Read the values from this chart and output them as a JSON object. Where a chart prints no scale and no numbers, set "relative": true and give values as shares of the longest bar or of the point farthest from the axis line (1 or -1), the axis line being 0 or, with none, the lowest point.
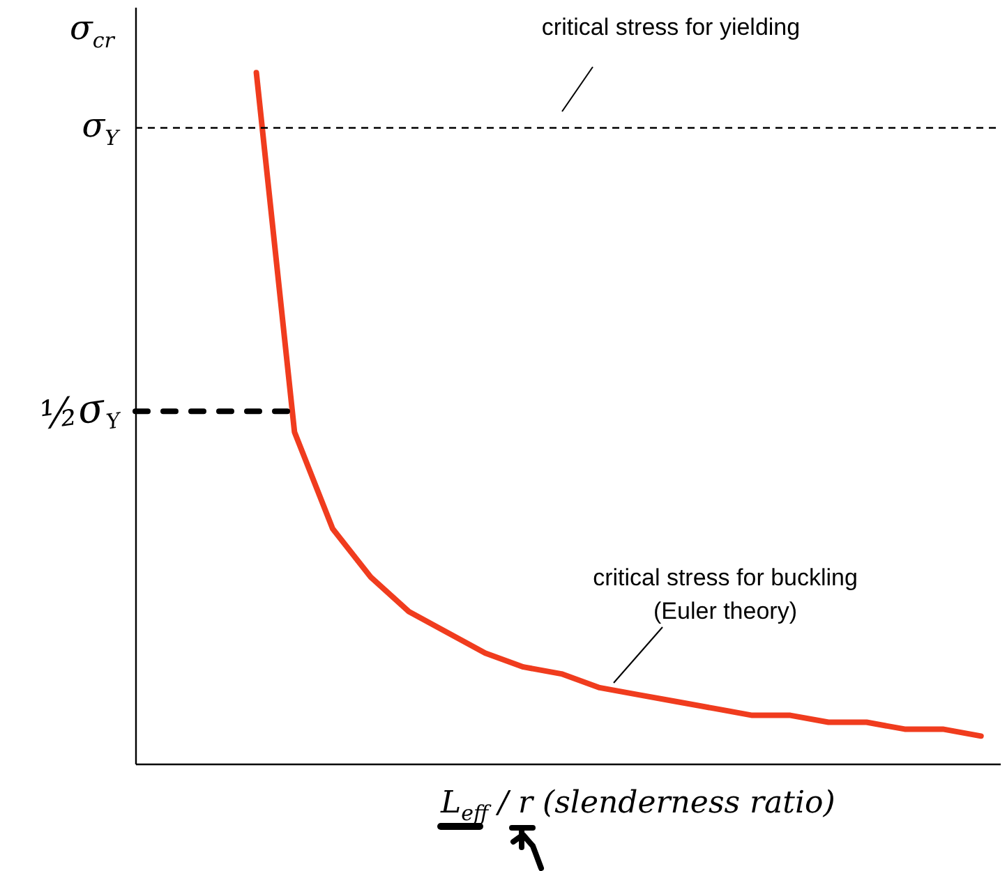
{
  "chart_data": {
    "type": "line",
    "relative": true,
    "xlabel": "L$_{eff}$ / r  (slenderness ratio)",
    "ylabel": "σ$_{cr}$",
    "tick_labels": false,
    "categories": [
      null,
      null,
      null,
      null,
      null,
      null,
      null,
      null,
      null,
      null,
      null,
      null,
      null,
      null,
      null,
      null,
      null,
      null,
      null,
      null
    ],
    "series": [
      {
        "color": "#f03c1e",
        "values": [
          1,
          0.48,
          0.34,
          0.27,
          0.22,
          0.19,
          0.16,
          0.14,
          0.13,
          0.11,
          0.1,
          0.09,
          0.08,
          0.07,
          0.07,
          0.06,
          0.06,
          0.05,
          0.05,
          0.04
        ]
      }
    ],
    "ref_lines": [
      {
        "axis": "y",
        "value": 0.92,
        "label": "σ$_{Y}$",
        "color": "#000000",
        "line_style": "dashed"
      },
      {
        "axis": "y",
        "value": 0.51,
        "label": "½σ$_{Y}$",
        "color": "#000000",
        "line_style": "dotted"
      }
    ],
    "annotations": [
      "critical stress for yielding",
      "critical stress for buckling\n(Euler theory)"
    ]
  }
}
